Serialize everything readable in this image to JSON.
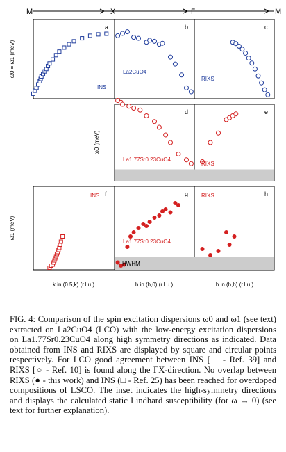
{
  "chart_data": {
    "type": "scatter",
    "direction_labels": [
      "M",
      "X",
      "Γ",
      "M"
    ],
    "panels": [
      {
        "id": "a",
        "series": [
          {
            "name": "INS",
            "marker": "square",
            "color": "#1f3c9c",
            "x": [
              -0.5,
              -0.49,
              -0.48,
              -0.47,
              -0.46,
              -0.455,
              -0.45,
              -0.44,
              -0.43,
              -0.42,
              -0.41,
              -0.4,
              -0.38,
              -0.36,
              -0.34,
              -0.31,
              -0.28,
              -0.25,
              -0.2,
              -0.15,
              -0.1,
              -0.05
            ],
            "y": [
              25,
              40,
              55,
              72,
              88,
              100,
              112,
              125,
              138,
              150,
              165,
              178,
              198,
              220,
              238,
              258,
              275,
              290,
              305,
              318,
              325,
              328
            ]
          }
        ]
      },
      {
        "id": "b",
        "sample": "La2CuO4",
        "series": [
          {
            "name": "RIXS",
            "marker": "circle",
            "color": "#1f3c9c",
            "x": [
              0.02,
              0.05,
              0.08,
              0.12,
              0.15,
              0.2,
              0.22,
              0.25,
              0.28,
              0.3,
              0.35,
              0.38,
              0.42,
              0.45,
              0.48
            ],
            "y": [
              318,
              330,
              338,
              310,
              305,
              285,
              295,
              290,
              275,
              280,
              210,
              175,
              120,
              55,
              35
            ]
          }
        ]
      },
      {
        "id": "c",
        "label": "RIXS",
        "series": [
          {
            "name": "RIXS",
            "marker": "circle",
            "color": "#1f3c9c",
            "x": [
              0.24,
              0.26,
              0.28,
              0.3,
              0.32,
              0.34,
              0.36,
              0.38,
              0.4,
              0.42,
              0.44,
              0.46
            ],
            "y": [
              285,
              278,
              265,
              250,
              230,
              205,
              180,
              150,
              115,
              80,
              45,
              20
            ]
          }
        ]
      },
      {
        "id": "d",
        "sample": "La1.77Sr0.23CuO4",
        "series": [
          {
            "name": "RIXS",
            "marker": "circle",
            "color": "#d42020",
            "x": [
              0.02,
              0.04,
              0.05,
              0.09,
              0.12,
              0.16,
              0.2,
              0.25,
              0.28,
              0.32,
              0.35,
              0.4,
              0.45,
              0.48
            ],
            "y": [
              420,
              410,
              400,
              390,
              380,
              370,
              340,
              310,
              280,
              240,
              200,
              140,
              110,
              90
            ]
          }
        ]
      },
      {
        "id": "e",
        "label": "RIXS",
        "series": [
          {
            "name": "RIXS",
            "marker": "circle",
            "color": "#d42020",
            "x": [
              0.05,
              0.1,
              0.15,
              0.2,
              0.22,
              0.24,
              0.26
            ],
            "y": [
              100,
              200,
              250,
              320,
              330,
              340,
              350
            ]
          }
        ]
      },
      {
        "id": "f",
        "series": [
          {
            "name": "INS",
            "marker": "square",
            "color": "#d42020",
            "x": [
              -0.4,
              -0.39,
              -0.38,
              -0.375,
              -0.37,
              -0.365,
              -0.36,
              -0.355,
              -0.35,
              -0.345,
              -0.34,
              -0.335,
              -0.33,
              -0.32
            ],
            "y": [
              10,
              20,
              25,
              35,
              45,
              55,
              65,
              75,
              85,
              95,
              105,
              120,
              135,
              160
            ]
          }
        ]
      },
      {
        "id": "g",
        "sample": "La1.77Sr0.23CuO4",
        "series": [
          {
            "name": "RIXS",
            "marker": "filled-circle",
            "color": "#d42020",
            "x": [
              0.4,
              0.38,
              0.35,
              0.32,
              0.3,
              0.28,
              0.25,
              0.22,
              0.2,
              0.18,
              0.15,
              0.12,
              0.1,
              0.08,
              0.06,
              0.04,
              0.02
            ],
            "y": [
              310,
              320,
              275,
              290,
              280,
              260,
              250,
              230,
              210,
              220,
              200,
              180,
              160,
              110,
              25,
              20,
              35
            ]
          }
        ]
      },
      {
        "id": "h",
        "label": "RIXS",
        "series": [
          {
            "name": "RIXS",
            "marker": "filled-circle",
            "color": "#d42020",
            "x": [
              0.05,
              0.1,
              0.15,
              0.2,
              0.22,
              0.25
            ],
            "y": [
              100,
              70,
              90,
              180,
              120,
              160
            ]
          }
        ]
      }
    ],
    "ylabels": {
      "top": "ω0 = ω1 (meV)",
      "mid": "ω0 (meV)",
      "bot": "ω1 (meV)"
    },
    "xlabels": [
      "k in (0.5,k) (r.l.u.)",
      "h in (h,0) (r.l.u.)",
      "h in (h,h) (r.l.u.)"
    ],
    "ylim": [
      0,
      400
    ],
    "hwhm_label": "HWHM",
    "colors": {
      "blue": "#1f3c9c",
      "red": "#d42020",
      "gray": "#cccccc"
    }
  },
  "caption": "FIG. 4: Comparison of the spin excitation dispersions ω0 and ω1 (see text) extracted on La2CuO4 (LCO) with the low-energy excitation dispersions on La1.77Sr0.23CuO4 along high symmetry directions as indicated. Data obtained from INS and RIXS are displayed by square and circular points respectively. For LCO good agreement between INS [□ - Ref. 39] and RIXS [○ - Ref. 10] is found along the ΓX-direction. No overlap between RIXS (● - this work) and INS (□ - Ref. 25) has been reached for overdoped compositions of LSCO. The inset indicates the high-symmetry directions and displays the calculated static Lindhard susceptibility (for ω → 0) (see text for further explanation)."
}
